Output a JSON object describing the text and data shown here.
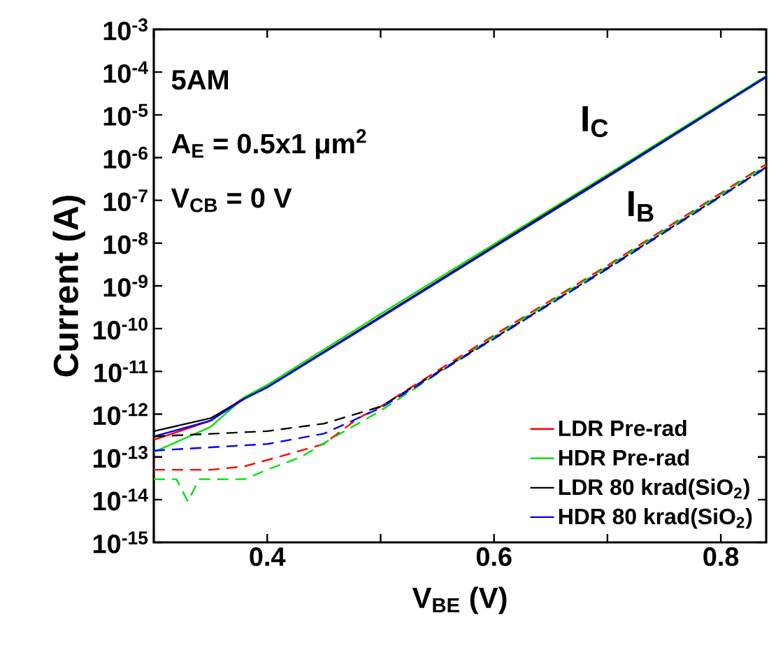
{
  "chart_data": {
    "type": "line",
    "xlabel": "V$_{BE}$ (V)",
    "ylabel": "Current (A)",
    "log": "y",
    "legend": "bottom right",
    "grid": false,
    "xlim": [
      0.3,
      0.84
    ],
    "ylim": [
      1e-15,
      0.001
    ],
    "xticks": [
      {
        "value": 0.3,
        "label": null
      },
      0.4,
      {
        "value": 0.5,
        "label": null
      },
      0.6,
      {
        "value": 0.7,
        "label": null
      },
      0.8
    ],
    "yticks": [
      {
        "value": 1e-15,
        "label": "10$^{-15}$"
      },
      {
        "value": 1e-14,
        "label": "10$^{-14}$"
      },
      {
        "value": 1e-13,
        "label": "10$^{-13}$"
      },
      {
        "value": 1e-12,
        "label": "10$^{-12}$"
      },
      {
        "value": 1e-11,
        "label": "10$^{-11}$"
      },
      {
        "value": 1e-10,
        "label": "10$^{-10}$"
      },
      {
        "value": 1e-09,
        "label": "10$^{-9}$"
      },
      {
        "value": 1e-08,
        "label": "10$^{-8}$"
      },
      {
        "value": 1e-07,
        "label": "10$^{-7}$"
      },
      {
        "value": 1e-06,
        "label": "10$^{-6}$"
      },
      {
        "value": 1e-05,
        "label": "10$^{-5}$"
      },
      {
        "value": 0.0001,
        "label": "10$^{-4}$"
      },
      {
        "value": 0.001,
        "label": "10$^{-3}$"
      }
    ],
    "series": [
      {
        "name": "LDR Pre-rad",
        "color": "#ff0000",
        "line_style": "solid",
        "x": [
          0.3,
          0.35,
          0.38
        ],
        "values": [
          2.5e-13,
          7e-13,
          2.5e-12
        ]
      },
      {
        "name": "HDR Pre-rad",
        "color": "#00e000",
        "line_style": "solid",
        "x": [
          0.3,
          0.35,
          0.38,
          0.4,
          0.5,
          0.6,
          0.7,
          0.84
        ],
        "values": [
          1.3e-13,
          5e-13,
          2.5e-12,
          4.8e-12,
          2.2e-10,
          9.5e-09,
          4e-07,
          8.2e-05
        ]
      },
      {
        "name": "LDR 80 krad(SiO$_{2}$)",
        "color": "#000000",
        "line_style": "solid",
        "x": [
          0.3,
          0.35,
          0.38,
          0.4,
          0.5,
          0.6,
          0.7,
          0.84
        ],
        "values": [
          4e-13,
          8e-13,
          2.3e-12,
          4.3e-12,
          1.9e-10,
          8.5e-09,
          3.7e-07,
          7.8e-05
        ]
      },
      {
        "name": "HDR 80 krad(SiO$_{2}$)",
        "color": "#0000ff",
        "line_style": "solid",
        "x": [
          0.3,
          0.35,
          0.38,
          0.4,
          0.5,
          0.6,
          0.7,
          0.84
        ],
        "values": [
          3e-13,
          7e-13,
          2.3e-12,
          4.2e-12,
          1.8e-10,
          8e-09,
          3.5e-07,
          7.6e-05
        ]
      },
      {
        "color": "#ff0000",
        "line_style": "dashed",
        "x": [
          0.3,
          0.35,
          0.38,
          0.41,
          0.45,
          0.48,
          0.5,
          0.6,
          0.7,
          0.84
        ],
        "values": [
          5e-14,
          5e-14,
          6e-14,
          1e-13,
          2e-13,
          8e-13,
          1.5e-12,
          7e-11,
          3e-09,
          7e-07
        ]
      },
      {
        "color": "#00e000",
        "line_style": "dashed",
        "x": [
          0.3,
          0.32,
          0.33,
          0.34,
          0.38,
          0.4,
          0.43,
          0.46,
          0.5,
          0.6,
          0.7,
          0.84
        ],
        "values": [
          3e-14,
          3e-14,
          9e-15,
          3e-14,
          3e-14,
          5e-14,
          1e-13,
          3e-13,
          1.2e-12,
          6.5e-11,
          2.8e-09,
          6.5e-07
        ]
      },
      {
        "color": "#000000",
        "line_style": "dashed",
        "x": [
          0.3,
          0.4,
          0.45,
          0.5,
          0.6,
          0.7,
          0.84
        ],
        "values": [
          3e-13,
          4e-13,
          6e-13,
          1.5e-12,
          6e-11,
          2.6e-09,
          6e-07
        ]
      },
      {
        "color": "#0000ff",
        "line_style": "dashed",
        "x": [
          0.3,
          0.4,
          0.45,
          0.48,
          0.5,
          0.6,
          0.7,
          0.84
        ],
        "values": [
          1.4e-13,
          2e-13,
          3.5e-13,
          8e-13,
          1.4e-12,
          5.8e-11,
          2.5e-09,
          5.8e-07
        ]
      }
    ],
    "annotations": [
      "5AM",
      "A$_{E}$ = 0.5x1 μm$^{2}$",
      "V$_{CB}$ = 0 V",
      "I$_{C}$",
      "I$_{B}$"
    ]
  }
}
